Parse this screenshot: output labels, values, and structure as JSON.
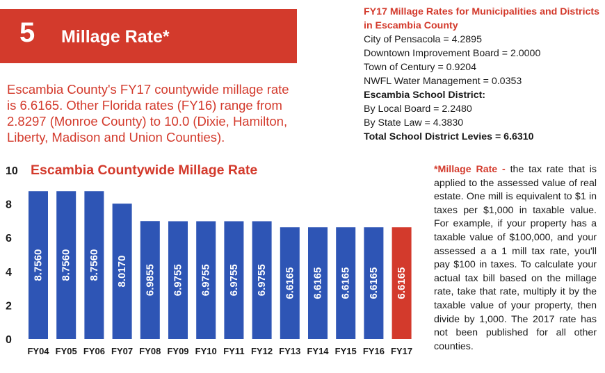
{
  "banner": {
    "number": "5",
    "title": "Millage Rate*"
  },
  "summary": "Escambia County's FY17 countywide millage rate is 6.6165. Other Florida rates (FY16) range from 2.8297 (Monroe County) to 10.0 (Dixie, Hamilton, Liberty, Madison and Union Counties).",
  "rates_box": {
    "heading": "FY17 Millage Rates for Municipalities and Districts in Escambia County",
    "lines": [
      "City of Pensacola = 4.2895",
      "Downtown Improvement Board = 2.0000",
      "Town of Century = 0.9204",
      "NWFL Water Management = 0.0353"
    ],
    "school_heading": "Escambia School District:",
    "school_lines": [
      "By Local Board = 2.2480",
      "By State Law = 4.3830"
    ],
    "total": "Total School District Levies = 6.6310"
  },
  "definition": {
    "term": "*Millage Rate -",
    "text": "the tax rate that is applied to the assessed value of real estate. One mill is equivalent to $1 in taxes per $1,000 in taxable value. For example, if your property has a taxable value of $100,000, and your assessed a a 1 mill tax rate, you'll pay $100 in taxes. To calculate your actual tax bill based on the millage rate, take that rate, multiply it by the taxable value of your property, then divide by 1,000. The 2017 rate has not been published for all other counties."
  },
  "colors": {
    "accent": "#d33a2c",
    "bar": "#2e55b5",
    "highlight": "#d33a2c"
  },
  "chart_data": {
    "type": "bar",
    "title": "Escambia Countywide Millage Rate",
    "categories": [
      "FY04",
      "FY05",
      "FY06",
      "FY07",
      "FY08",
      "FY09",
      "FY10",
      "FY11",
      "FY12",
      "FY13",
      "FY14",
      "FY15",
      "FY16",
      "FY17"
    ],
    "values": [
      8.756,
      8.756,
      8.756,
      8.017,
      6.9855,
      6.9755,
      6.9755,
      6.9755,
      6.9755,
      6.6165,
      6.6165,
      6.6165,
      6.6165,
      6.6165
    ],
    "labels": [
      "8.7560",
      "8.7560",
      "8.7560",
      "8.0170",
      "6.9855",
      "6.9755",
      "6.9755",
      "6.9755",
      "6.9755",
      "6.6165",
      "6.6165",
      "6.6165",
      "6.6165",
      "6.6165"
    ],
    "highlight_category": "FY17",
    "yticks": [
      0,
      2,
      4,
      6,
      8,
      10
    ],
    "ylim": [
      0,
      10
    ],
    "xlabel": "",
    "ylabel": "",
    "grid": false
  }
}
